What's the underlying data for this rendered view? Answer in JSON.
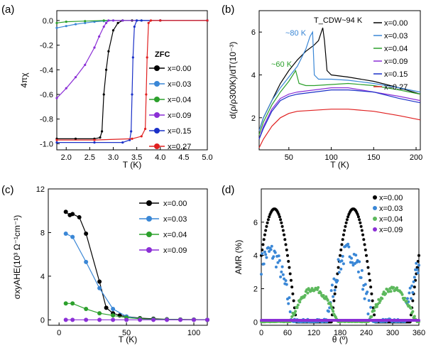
{
  "figure": {
    "panel_labels": [
      "(a)",
      "(b)",
      "(c)",
      "(d)"
    ]
  },
  "chart_data": [
    {
      "id": "a",
      "type": "line",
      "xlabel": "T (K)",
      "ylabel": "4πχ",
      "xlim": [
        1.8,
        5.0
      ],
      "ylim": [
        -1.05,
        0.08
      ],
      "xticks": [
        "2.0",
        "2.5",
        "3.0",
        "3.5",
        "4.0",
        "4.5",
        "5.0"
      ],
      "yticks": [
        "0.0",
        "-0.2",
        "-0.4",
        "-0.6",
        "-0.8",
        "-1.0"
      ],
      "legend_title": "ZFC",
      "legend_position": "right",
      "series": [
        {
          "name": "x=0.00",
          "color": "#000000",
          "x": [
            1.8,
            2.2,
            2.6,
            2.72,
            2.76,
            2.8,
            2.85,
            2.9,
            3.0,
            3.1,
            3.2,
            3.4,
            4.0,
            5.0
          ],
          "y": [
            -0.96,
            -0.96,
            -0.96,
            -0.95,
            -0.9,
            -0.6,
            -0.4,
            -0.25,
            -0.08,
            -0.02,
            0,
            0,
            0,
            0
          ]
        },
        {
          "name": "x=0.03",
          "color": "#3a87d6",
          "x": [
            1.8,
            2.0,
            2.2,
            2.4,
            2.6,
            2.8,
            3.0,
            3.2,
            3.5,
            4.0,
            5.0
          ],
          "y": [
            -0.06,
            -0.045,
            -0.03,
            -0.02,
            -0.01,
            -0.005,
            0,
            0,
            0,
            0,
            0
          ]
        },
        {
          "name": "x=0.04",
          "color": "#2ca02c",
          "x": [
            1.8,
            2.0,
            2.4,
            2.8,
            3.2,
            3.6,
            4.0,
            5.0
          ],
          "y": [
            -0.02,
            -0.01,
            -0.005,
            0,
            0,
            0,
            0,
            0
          ]
        },
        {
          "name": "x=0.09",
          "color": "#8b2fd6",
          "x": [
            1.8,
            2.0,
            2.2,
            2.4,
            2.6,
            2.7,
            2.8,
            2.85,
            2.9,
            3.0,
            3.2,
            4.0,
            5.0
          ],
          "y": [
            -0.63,
            -0.55,
            -0.46,
            -0.36,
            -0.22,
            -0.13,
            -0.05,
            -0.02,
            0,
            0,
            0,
            0,
            0
          ]
        },
        {
          "name": "x=0.15",
          "color": "#1a30c8",
          "x": [
            1.8,
            2.6,
            3.2,
            3.35,
            3.38,
            3.4,
            3.42,
            3.45,
            3.5,
            3.6,
            4.0,
            5.0
          ],
          "y": [
            -0.99,
            -0.99,
            -0.99,
            -0.97,
            -0.9,
            -0.6,
            -0.3,
            -0.05,
            0,
            0,
            0,
            0
          ]
        },
        {
          "name": "x=0.27",
          "color": "#e02020",
          "x": [
            1.8,
            2.6,
            3.4,
            3.6,
            3.68,
            3.7,
            3.72,
            3.75,
            3.8,
            4.0,
            5.0
          ],
          "y": [
            -0.97,
            -0.97,
            -0.96,
            -0.94,
            -0.88,
            -0.6,
            -0.3,
            -0.02,
            0,
            0,
            0
          ]
        }
      ]
    },
    {
      "id": "b",
      "type": "line",
      "xlabel": "T (K)",
      "ylabel": "d(ρ/ρ300K)/dT(10⁻³)",
      "xlim": [
        15,
        205
      ],
      "ylim": [
        0.5,
        7.0
      ],
      "xticks": [
        "50",
        "100",
        "150",
        "200"
      ],
      "yticks": [
        "2",
        "4",
        "6"
      ],
      "annotations": [
        "T_CDW~94 K",
        "~80 K",
        "~60 K"
      ],
      "legend_position": "right",
      "series": [
        {
          "name": "x=0.00",
          "color": "#000000",
          "x": [
            15,
            20,
            30,
            40,
            50,
            60,
            70,
            80,
            85,
            90,
            92,
            95,
            100,
            120,
            150,
            180,
            205
          ],
          "y": [
            1.4,
            2.0,
            2.8,
            3.6,
            4.2,
            4.7,
            5.1,
            5.4,
            5.6,
            6.2,
            5.6,
            4.2,
            4.0,
            3.9,
            3.7,
            3.4,
            3.1
          ]
        },
        {
          "name": "x=0.03",
          "color": "#3a87d6",
          "x": [
            15,
            20,
            30,
            40,
            50,
            60,
            70,
            75,
            78,
            80,
            85,
            100,
            120,
            150,
            180,
            205
          ],
          "y": [
            1.4,
            2.0,
            2.8,
            3.4,
            3.9,
            4.4,
            5.2,
            5.8,
            6.0,
            4.0,
            3.8,
            3.8,
            3.75,
            3.6,
            3.4,
            3.2
          ]
        },
        {
          "name": "x=0.04",
          "color": "#2ca02c",
          "x": [
            15,
            20,
            30,
            40,
            50,
            58,
            62,
            70,
            80,
            100,
            120,
            150,
            180,
            205
          ],
          "y": [
            1.2,
            1.8,
            2.6,
            3.2,
            3.7,
            4.2,
            3.6,
            3.5,
            3.5,
            3.55,
            3.6,
            3.5,
            3.3,
            3.1
          ]
        },
        {
          "name": "x=0.09",
          "color": "#8b2fd6",
          "x": [
            15,
            20,
            30,
            40,
            50,
            60,
            80,
            100,
            120,
            150,
            180,
            205
          ],
          "y": [
            1.0,
            1.6,
            2.4,
            2.9,
            3.1,
            3.2,
            3.3,
            3.4,
            3.4,
            3.2,
            3.0,
            2.8
          ]
        },
        {
          "name": "x=0.15",
          "color": "#1a30c8",
          "x": [
            15,
            20,
            30,
            40,
            50,
            60,
            80,
            100,
            120,
            150,
            180,
            205
          ],
          "y": [
            1.0,
            1.5,
            2.3,
            2.8,
            3.0,
            3.1,
            3.2,
            3.3,
            3.3,
            3.2,
            2.9,
            2.7
          ]
        },
        {
          "name": "x=0.27",
          "color": "#e02020",
          "x": [
            15,
            20,
            30,
            40,
            50,
            60,
            80,
            100,
            120,
            150,
            180,
            205
          ],
          "y": [
            0.6,
            1.0,
            1.6,
            2.0,
            2.2,
            2.3,
            2.35,
            2.4,
            2.4,
            2.3,
            2.1,
            1.9
          ]
        }
      ]
    },
    {
      "id": "c",
      "type": "line",
      "xlabel": "T (K)",
      "ylabel": "σxyAHE(10³ Ω⁻¹cm⁻¹)",
      "xlim": [
        -8,
        110
      ],
      "ylim": [
        -0.5,
        12
      ],
      "xticks": [
        "0",
        "50",
        "100"
      ],
      "yticks": [
        "0",
        "4",
        "8",
        "12"
      ],
      "legend_position": "top-right",
      "series": [
        {
          "name": "x=0.00",
          "color": "#000000",
          "x": [
            5,
            8,
            10,
            15,
            20,
            30,
            35,
            40,
            45,
            50,
            60,
            70,
            80,
            90,
            100,
            110
          ],
          "y": [
            9.9,
            9.6,
            9.7,
            9.4,
            7.9,
            3.5,
            1.1,
            0.6,
            0.4,
            0.3,
            0.15,
            0.1,
            0.05,
            0.03,
            0.02,
            0.0
          ]
        },
        {
          "name": "x=0.03",
          "color": "#3a87d6",
          "x": [
            5,
            10,
            20,
            30,
            40,
            50,
            60,
            70,
            80,
            90,
            100,
            110
          ],
          "y": [
            7.9,
            7.6,
            5.3,
            2.9,
            1.0,
            0.3,
            0.1,
            0.05,
            0.03,
            0.02,
            0.01,
            0.0
          ]
        },
        {
          "name": "x=0.04",
          "color": "#2ca02c",
          "x": [
            5,
            10,
            20,
            30,
            40,
            50,
            60,
            70,
            80,
            90,
            100,
            110
          ],
          "y": [
            1.5,
            1.5,
            1.0,
            0.6,
            0.4,
            0.2,
            0.1,
            0.05,
            0.03,
            0.02,
            0.01,
            0.0
          ]
        },
        {
          "name": "x=0.09",
          "color": "#8b2fd6",
          "x": [
            5,
            10,
            20,
            30,
            40,
            50,
            60,
            70,
            80,
            90,
            100,
            110
          ],
          "y": [
            0.0,
            0.0,
            0.0,
            0.0,
            0.0,
            0.0,
            0.0,
            0.0,
            0.0,
            0.0,
            0.0,
            0.0
          ]
        }
      ]
    },
    {
      "id": "d",
      "type": "scatter",
      "xlabel": "θ (º)",
      "ylabel": "AMR (%)",
      "xlim": [
        0,
        360
      ],
      "ylim": [
        -0.2,
        8
      ],
      "xticks": [
        "0",
        "60",
        "120",
        "180",
        "240",
        "300",
        "360"
      ],
      "yticks": [
        "0",
        "2",
        "4",
        "6"
      ],
      "legend_position": "top-right",
      "series": [
        {
          "name": "x=0.00",
          "color": "#000000",
          "generator": {
            "amp": 6.8,
            "peaks": [
              30,
              210
            ],
            "span": 100,
            "max_angle": 360
          }
        },
        {
          "name": "x=0.03",
          "color": "#3a87d6",
          "generator": {
            "amp": 4.2,
            "peaks": [
              20,
              200
            ],
            "span": 105,
            "max_angle": 360,
            "noise": 0.6
          }
        },
        {
          "name": "x=0.04",
          "color": "#5cb85c",
          "generator": {
            "amp": 2.0,
            "peaks": [
              120,
              300
            ],
            "span": 110,
            "max_angle": 360,
            "noise": 0.15
          }
        },
        {
          "name": "x=0.09",
          "color": "#8b2fd6",
          "generator": {
            "amp": 0.1,
            "peaks": [
              0
            ],
            "span": 360,
            "max_angle": 360
          }
        }
      ]
    }
  ]
}
